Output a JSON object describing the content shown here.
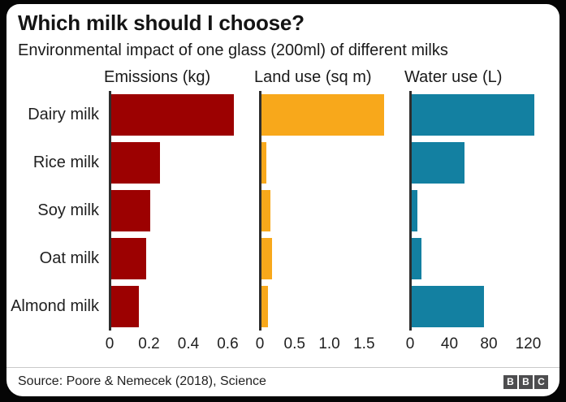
{
  "chart_data": {
    "type": "bar",
    "orientation": "horizontal",
    "title": "Which milk should I choose?",
    "subtitle": "Environmental impact of one glass (200ml) of different milks",
    "categories": [
      "Dairy milk",
      "Rice milk",
      "Soy milk",
      "Oat milk",
      "Almond milk"
    ],
    "panels": [
      {
        "title": "Emissions (kg)",
        "color": "#9c0101",
        "values": [
          0.63,
          0.25,
          0.2,
          0.18,
          0.14
        ],
        "tick_values": [
          0,
          0.2,
          0.4,
          0.6
        ],
        "tick_labels": [
          "0",
          "0.2",
          "0.4",
          "0.6"
        ],
        "axis_max": 0.66
      },
      {
        "title": "Land use (sq m)",
        "color": "#f8a81b",
        "values": [
          1.79,
          0.07,
          0.13,
          0.15,
          0.1
        ],
        "tick_values": [
          0,
          0.5,
          1.0,
          1.5
        ],
        "tick_labels": [
          "0",
          "0.5",
          "1.0",
          "1.5"
        ],
        "axis_max": 1.87
      },
      {
        "title": "Water use (L)",
        "color": "#1380a1",
        "values": [
          126,
          54,
          6,
          10,
          74
        ],
        "tick_values": [
          0,
          40,
          80,
          120
        ],
        "tick_labels": [
          "0",
          "40",
          "80",
          "120"
        ],
        "axis_max": 132
      }
    ],
    "grid": false,
    "legend": false
  },
  "footer": {
    "source": "Source: Poore & Nemecek (2018), Science",
    "logo_letters": [
      "B",
      "B",
      "C"
    ]
  },
  "colors": {
    "background": "#050505",
    "card": "#ffffff",
    "axis": "#2e2e2e",
    "divider": "#c9c9c9",
    "logo_block": "#4d4d4f"
  }
}
